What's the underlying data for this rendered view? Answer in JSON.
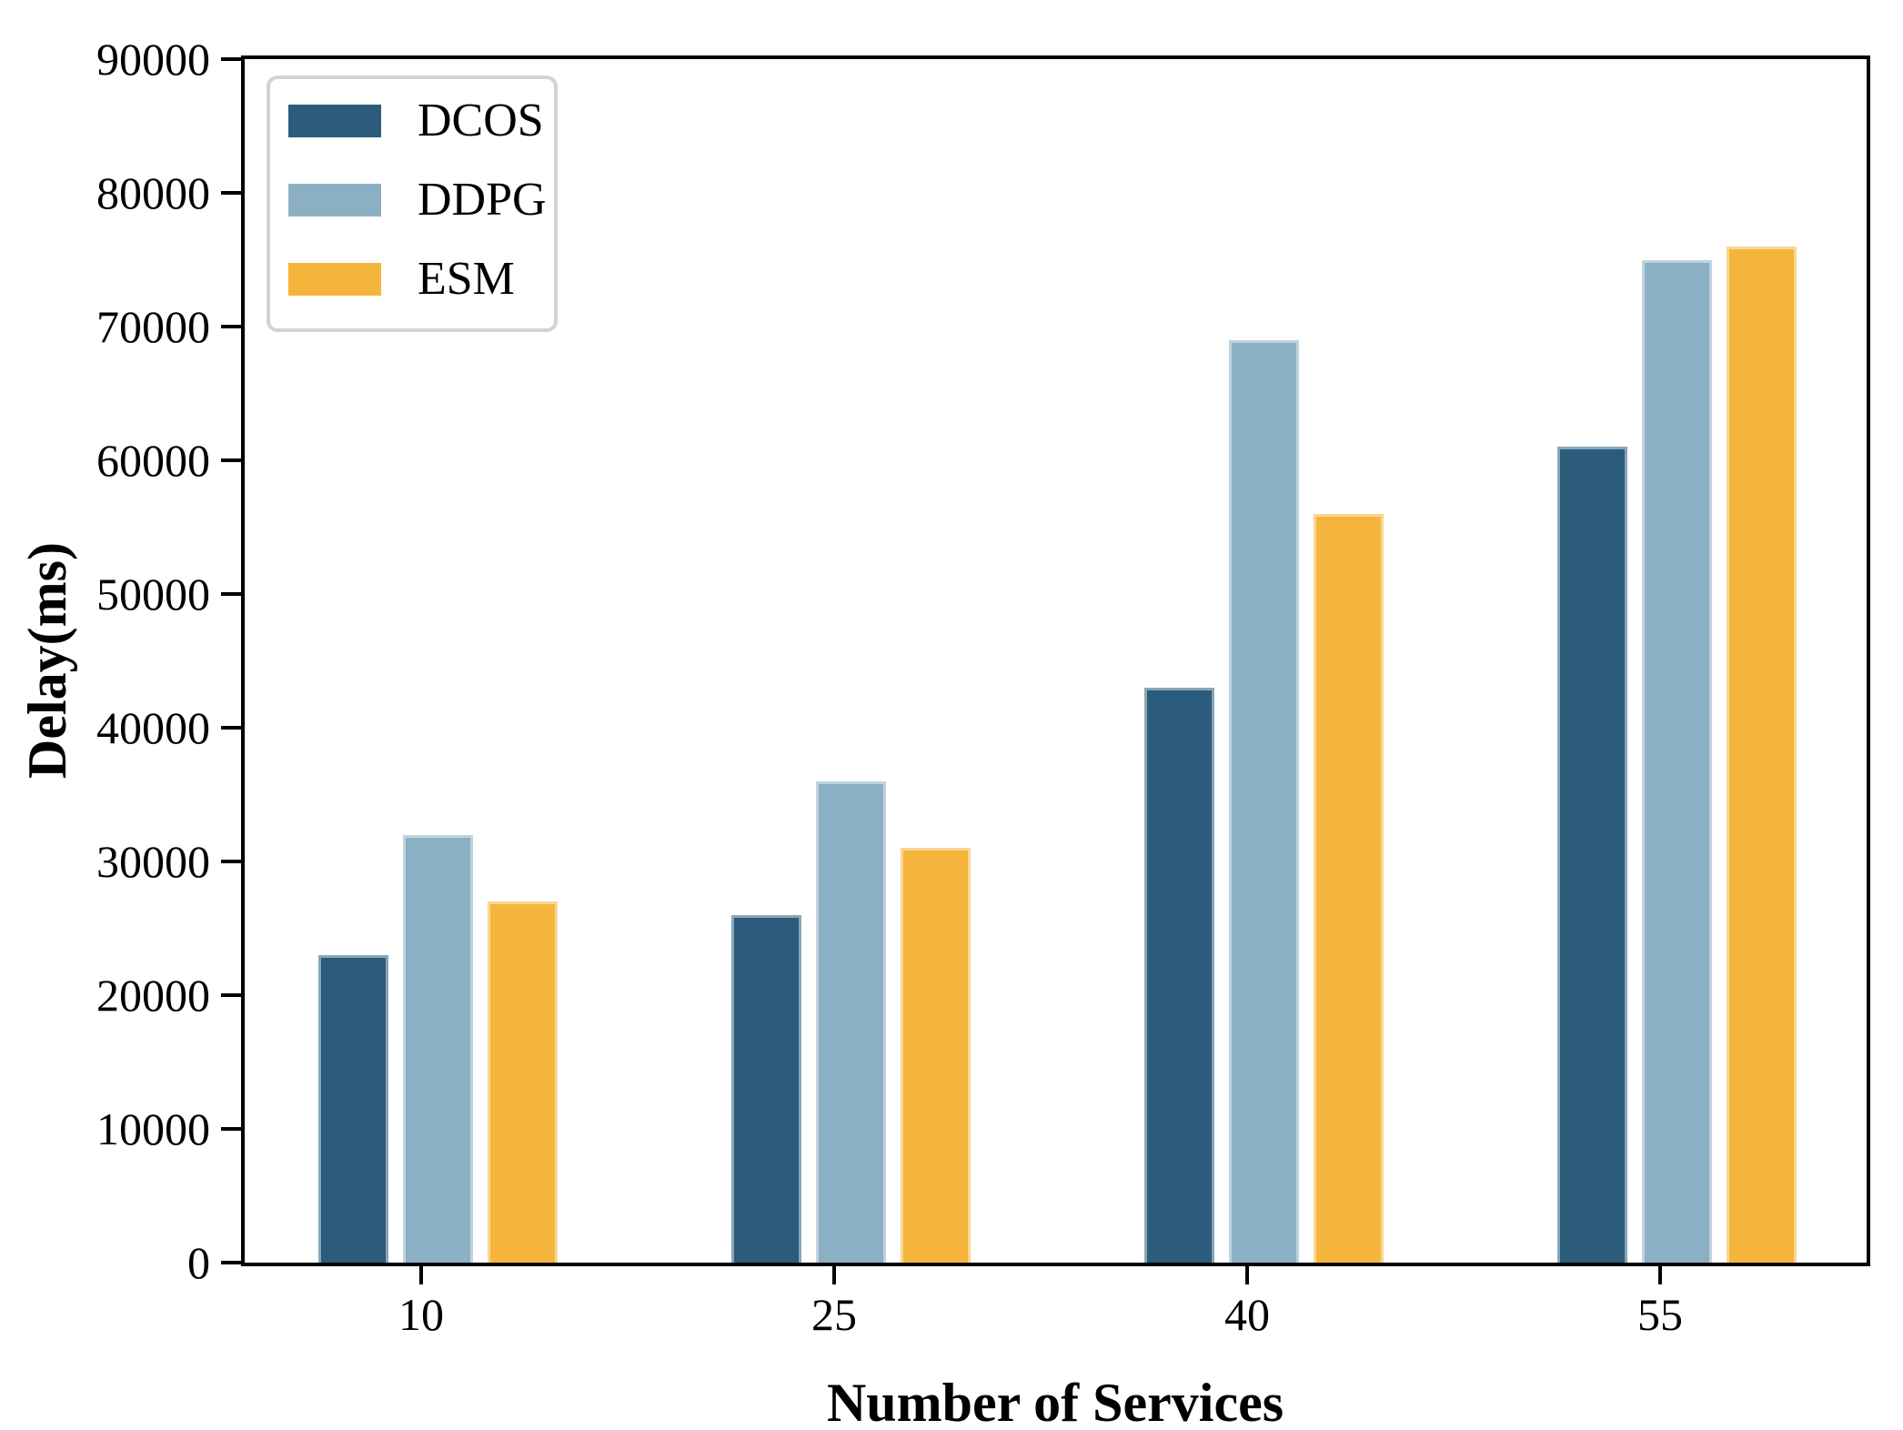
{
  "chart_data": {
    "type": "bar",
    "title": "",
    "xlabel": "Number of Services",
    "ylabel": "Delay(ms)",
    "categories": [
      "10",
      "25",
      "40",
      "55"
    ],
    "series": [
      {
        "name": "DCOS",
        "color": "#2b5c7b",
        "values": [
          23000,
          26000,
          43000,
          61000
        ]
      },
      {
        "name": "DDPG",
        "color": "#8cb0c3",
        "values": [
          32000,
          36000,
          69000,
          75000
        ]
      },
      {
        "name": "ESM",
        "color": "#f5b53c",
        "values": [
          27000,
          31000,
          56000,
          76000
        ]
      }
    ],
    "ylim": [
      0,
      90000
    ],
    "yticks": [
      0,
      10000,
      20000,
      30000,
      40000,
      50000,
      60000,
      70000,
      80000,
      90000
    ],
    "ytick_labels": [
      "0",
      "10000",
      "20000",
      "30000",
      "40000",
      "50000",
      "60000",
      "70000",
      "80000",
      "90000"
    ],
    "grid": false,
    "legend": {
      "position": "upper left",
      "entries": [
        "DCOS",
        "DDPG",
        "ESM"
      ],
      "border_color": "#d3d3d3"
    },
    "axis_color": "#000000"
  }
}
